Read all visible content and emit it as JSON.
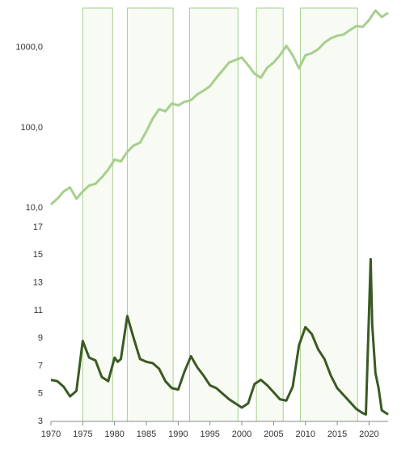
{
  "chart_data": [
    {
      "type": "line",
      "log_scale": true,
      "ylim": [
        10,
        3100
      ],
      "yticks": [
        {
          "value": 10,
          "label": "10,0"
        },
        {
          "value": 100,
          "label": "100,0"
        },
        {
          "value": 1000,
          "label": "1000,0"
        }
      ],
      "xlim": [
        1970,
        2023
      ],
      "x": [
        1970,
        1971,
        1972,
        1973,
        1974,
        1975,
        1976,
        1977,
        1978,
        1979,
        1980,
        1981,
        1982,
        1983,
        1984,
        1985,
        1986,
        1987,
        1988,
        1989,
        1990,
        1991,
        1992,
        1993,
        1994,
        1995,
        1996,
        1997,
        1998,
        1999,
        2000,
        2001,
        2002,
        2003,
        2004,
        2005,
        2006,
        2007,
        2008,
        2009,
        2010,
        2011,
        2012,
        2013,
        2014,
        2015,
        2016,
        2017,
        2018,
        2019,
        2020,
        2021,
        2022,
        2023
      ],
      "series": [
        {
          "color": "#a6cf8c",
          "values": [
            11,
            13,
            16,
            18,
            13,
            16,
            19,
            20,
            24,
            30,
            40,
            38,
            50,
            60,
            65,
            90,
            130,
            170,
            160,
            200,
            190,
            210,
            220,
            260,
            290,
            330,
            420,
            520,
            650,
            700,
            750,
            600,
            470,
            420,
            560,
            650,
            800,
            1050,
            800,
            550,
            800,
            850,
            950,
            1150,
            1300,
            1400,
            1450,
            1650,
            1850,
            1800,
            2200,
            2900,
            2400,
            2700
          ]
        }
      ]
    },
    {
      "type": "line",
      "ylim": [
        3,
        17
      ],
      "yticks": [
        3,
        5,
        7,
        9,
        11,
        13,
        15,
        17
      ],
      "xlim": [
        1970,
        2023
      ],
      "xticks": [
        1970,
        1975,
        1980,
        1985,
        1990,
        1995,
        2000,
        2005,
        2010,
        2015,
        2020
      ],
      "shaded_periods": [
        [
          1975.0,
          1979.7
        ],
        [
          1982.0,
          1989.2
        ],
        [
          1991.8,
          1999.4
        ],
        [
          2002.3,
          2006.5
        ],
        [
          2009.2,
          2018.2
        ]
      ],
      "shade_color": "#a6cf8c",
      "x": [
        1970,
        1971,
        1972,
        1973,
        1974,
        1975,
        1976,
        1977,
        1978,
        1979,
        1980,
        1980.5,
        1981,
        1982,
        1983,
        1984,
        1985,
        1986,
        1987,
        1988,
        1989,
        1990,
        1991,
        1992,
        1993,
        1994,
        1995,
        1996,
        1997,
        1998,
        1999,
        2000,
        2001,
        2002,
        2003,
        2004,
        2005,
        2006,
        2007,
        2008,
        2009,
        2010,
        2011,
        2012,
        2013,
        2014,
        2015,
        2016,
        2017,
        2018,
        2019,
        2019.5,
        2020.25,
        2020.5,
        2021,
        2021.5,
        2022,
        2023
      ],
      "series": [
        {
          "color": "#3a5a23",
          "values": [
            6,
            5.9,
            5.5,
            4.8,
            5.2,
            8.8,
            7.6,
            7.4,
            6.2,
            5.9,
            7.6,
            7.3,
            7.5,
            10.6,
            9.0,
            7.5,
            7.3,
            7.2,
            6.8,
            5.9,
            5.4,
            5.3,
            6.6,
            7.7,
            6.9,
            6.3,
            5.6,
            5.4,
            5.0,
            4.6,
            4.3,
            4.0,
            4.3,
            5.7,
            6.0,
            5.6,
            5.1,
            4.6,
            4.5,
            5.5,
            8.5,
            9.8,
            9.3,
            8.2,
            7.5,
            6.3,
            5.4,
            4.9,
            4.4,
            3.9,
            3.6,
            3.5,
            14.7,
            10,
            6.5,
            5.4,
            3.8,
            3.5
          ]
        }
      ]
    }
  ]
}
